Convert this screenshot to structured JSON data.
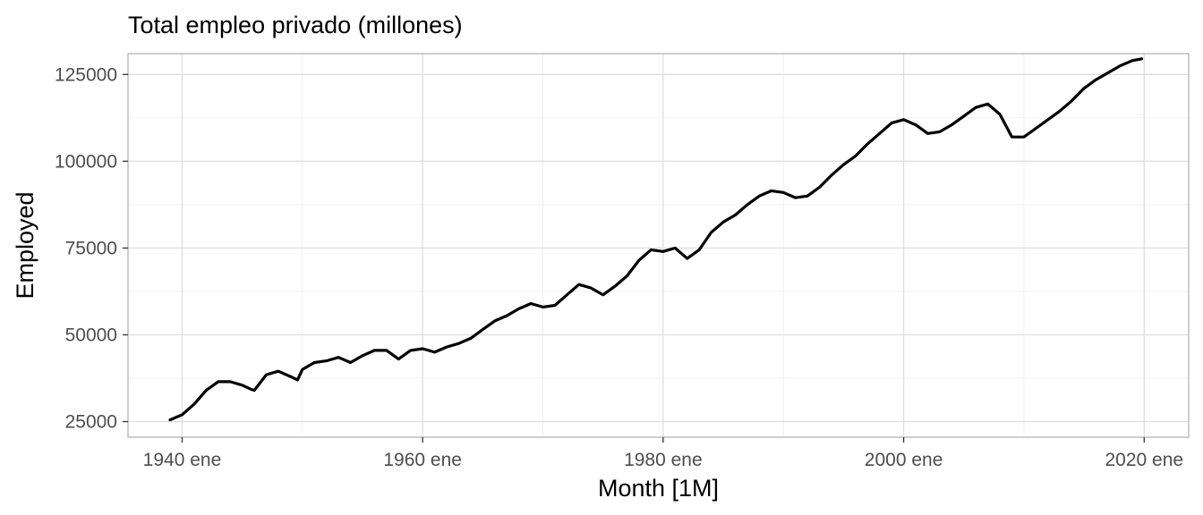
{
  "chart_data": {
    "type": "line",
    "title": "Total empleo privado (millones)",
    "xlabel": "Month [1M]",
    "ylabel": "Employed",
    "x_ticks": [
      "1940 ene",
      "1960 ene",
      "1980 ene",
      "2000 ene",
      "2020 ene"
    ],
    "y_ticks": [
      "25000",
      "50000",
      "75000",
      "100000",
      "125000"
    ],
    "xlim": [
      1935.5,
      2023.7
    ],
    "ylim": [
      20500,
      131000
    ],
    "grid": true,
    "series": [
      {
        "color": "#000000",
        "x": [
          1939.0,
          1940.0,
          1941.0,
          1942.0,
          1943.0,
          1944.0,
          1945.0,
          1945.6,
          1946.0,
          1947.0,
          1948.0,
          1949.0,
          1949.6,
          1950.0,
          1951.0,
          1952.0,
          1953.0,
          1954.0,
          1955.0,
          1956.0,
          1957.0,
          1958.0,
          1959.0,
          1960.0,
          1961.0,
          1962.0,
          1963.0,
          1964.0,
          1965.0,
          1966.0,
          1967.0,
          1968.0,
          1969.0,
          1970.0,
          1971.0,
          1972.0,
          1973.0,
          1974.0,
          1975.0,
          1976.0,
          1977.0,
          1978.0,
          1979.0,
          1980.0,
          1981.0,
          1982.0,
          1983.0,
          1984.0,
          1985.0,
          1986.0,
          1987.0,
          1988.0,
          1989.0,
          1990.0,
          1991.0,
          1992.0,
          1993.0,
          1994.0,
          1995.0,
          1996.0,
          1997.0,
          1998.0,
          1999.0,
          2000.0,
          2001.0,
          2002.0,
          2003.0,
          2004.0,
          2005.0,
          2006.0,
          2007.0,
          2008.0,
          2009.0,
          2010.0,
          2011.0,
          2012.0,
          2013.0,
          2014.0,
          2015.0,
          2016.0,
          2017.0,
          2018.0,
          2019.0,
          2019.8
        ],
        "y": [
          25500,
          27000,
          30000,
          34000,
          36500,
          36500,
          35500,
          34500,
          34000,
          38500,
          39500,
          38000,
          37000,
          40000,
          42000,
          42500,
          43500,
          42000,
          44000,
          45500,
          45500,
          43000,
          45500,
          46000,
          45000,
          46500,
          47500,
          49000,
          51500,
          54000,
          55500,
          57500,
          59000,
          58000,
          58500,
          61500,
          64500,
          63500,
          61500,
          64000,
          67000,
          71500,
          74500,
          74000,
          75000,
          72000,
          74500,
          79500,
          82500,
          84500,
          87500,
          90000,
          91500,
          91000,
          89500,
          90000,
          92500,
          96000,
          99000,
          101500,
          105000,
          108000,
          111000,
          112000,
          110500,
          108000,
          108500,
          110500,
          113000,
          115500,
          116500,
          113500,
          107000,
          107000,
          109500,
          112000,
          114500,
          117500,
          121000,
          123500,
          125500,
          127500,
          129000,
          129500
        ]
      }
    ]
  }
}
